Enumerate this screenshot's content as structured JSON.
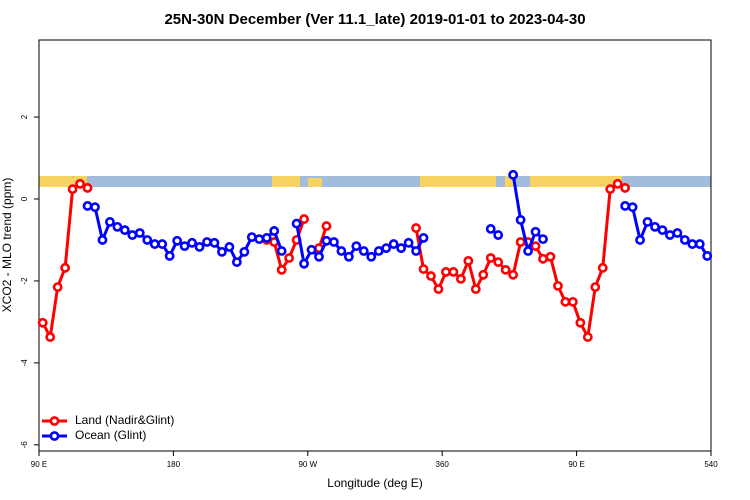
{
  "chart_data": {
    "type": "line",
    "title": "25N-30N December (Ver 11.1_late)   2019-01-01 to 2023-04-30",
    "x_label": "Longitude (deg E)",
    "y_label": "XCO2 - MLO trend (ppm)",
    "x": [
      92.5,
      97.5,
      102.5,
      107.5,
      112.5,
      117.5,
      122.5,
      127.5,
      132.5,
      137.5,
      142.5,
      147.5,
      152.5,
      157.5,
      162.5,
      167.5,
      172.5,
      177.5,
      182.5,
      187.5,
      192.5,
      197.5,
      202.5,
      207.5,
      212.5,
      217.5,
      222.5,
      227.5,
      232.5,
      237.5,
      242.5,
      247.5,
      252.5,
      257.5,
      262.5,
      267.5,
      272.5,
      277.5,
      282.5,
      287.5,
      292.5,
      297.5,
      302.5,
      307.5,
      312.5,
      317.5,
      322.5,
      327.5,
      332.5,
      337.5,
      342.5,
      347.5,
      352.5,
      357.5,
      362.5,
      367.5,
      372.5,
      377.5,
      382.5,
      387.5,
      392.5,
      397.5,
      402.5,
      407.5,
      412.5,
      417.5,
      422.5,
      427.5,
      432.5,
      437.5,
      442.5,
      447.5,
      452.5,
      457.5,
      462.5,
      467.5,
      472.5,
      477.5,
      482.5,
      487.5,
      492.5,
      497.5,
      502.5,
      507.5,
      512.5,
      517.5,
      522.5,
      527.5,
      532.5,
      537.5
    ],
    "series": [
      {
        "name": "Land (Nadir&Glint)",
        "color": "#ff0000",
        "values": [
          -3.02,
          -3.37,
          -2.15,
          -1.68,
          0.24,
          0.37,
          0.27,
          null,
          null,
          null,
          null,
          null,
          null,
          null,
          null,
          null,
          null,
          null,
          null,
          null,
          null,
          null,
          null,
          null,
          null,
          null,
          null,
          null,
          null,
          null,
          -1.0,
          -1.05,
          -1.73,
          -1.44,
          -1.0,
          -0.49,
          null,
          -1.2,
          -0.66,
          null,
          null,
          null,
          null,
          null,
          null,
          null,
          null,
          null,
          null,
          null,
          -0.71,
          -1.71,
          -1.88,
          -2.2,
          -1.78,
          -1.78,
          -1.95,
          -1.51,
          -2.2,
          -1.85,
          -1.44,
          -1.54,
          -1.73,
          -1.85,
          -1.05,
          -1.05,
          -1.15,
          -1.46,
          -1.41,
          -2.12,
          -2.51,
          -2.51,
          -3.02,
          -3.37,
          -2.15,
          -1.68,
          0.24,
          0.37,
          0.27,
          null,
          null,
          null,
          null,
          null,
          null,
          null,
          null,
          null,
          null,
          null
        ]
      },
      {
        "name": "Ocean (Glint)",
        "color": "#0000ff",
        "values": [
          null,
          null,
          null,
          null,
          null,
          null,
          -0.17,
          -0.2,
          -1.0,
          -0.56,
          -0.68,
          -0.76,
          -0.88,
          -0.83,
          -1.0,
          -1.1,
          -1.1,
          -1.39,
          -1.02,
          -1.15,
          -1.07,
          -1.17,
          -1.05,
          -1.07,
          -1.29,
          -1.17,
          -1.54,
          -1.29,
          -0.93,
          -0.98,
          -0.95,
          -0.78,
          -1.27,
          null,
          -0.6,
          -1.58,
          -1.24,
          -1.41,
          -1.02,
          -1.05,
          -1.27,
          -1.41,
          -1.15,
          -1.27,
          -1.41,
          -1.27,
          -1.2,
          -1.1,
          -1.2,
          -1.07,
          -1.27,
          -0.95,
          null,
          null,
          null,
          null,
          null,
          null,
          null,
          null,
          -0.73,
          -0.88,
          null,
          0.59,
          -0.51,
          -1.27,
          -0.8,
          -0.98,
          null,
          null,
          null,
          null,
          null,
          null,
          null,
          null,
          null,
          null,
          -0.17,
          -0.2,
          -1.0,
          -0.56,
          -0.68,
          -0.76,
          -0.88,
          -0.83,
          -1.0,
          -1.1,
          -1.1,
          -1.39
        ]
      }
    ],
    "xlim": [
      90,
      540
    ],
    "xticks": [
      {
        "value": 90,
        "label": "90 E"
      },
      180,
      {
        "value": 270,
        "label": "90 W"
      },
      360,
      {
        "value": 450,
        "label": "90 E"
      },
      540
    ],
    "ylim": [
      -6.15,
      3.88
    ],
    "yticks": [
      2,
      0,
      -2,
      -4,
      -6
    ],
    "legend": "bottom-left"
  }
}
